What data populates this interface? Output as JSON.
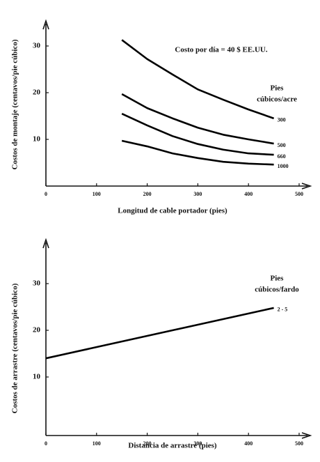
{
  "chart_data": [
    {
      "type": "line",
      "annotation": "Costo por día = 40 $ EE.UU.",
      "legend_title": [
        "Pies",
        "cúbicos/acre"
      ],
      "xlabel": "Longitud de cable portador (pies)",
      "ylabel": "Costos de montaje (centavos/pie cúbico)",
      "x": [
        150,
        200,
        250,
        300,
        350,
        400,
        450
      ],
      "series": [
        {
          "name": "300",
          "color": "#000000",
          "values": [
            31.3,
            27.2,
            23.9,
            20.7,
            18.5,
            16.4,
            14.5
          ]
        },
        {
          "name": "500",
          "color": "#000000",
          "values": [
            19.7,
            16.7,
            14.5,
            12.5,
            11.0,
            10.0,
            9.1
          ]
        },
        {
          "name": "660",
          "color": "#000000",
          "values": [
            15.5,
            13.0,
            10.7,
            9.0,
            7.8,
            7.0,
            6.7
          ]
        },
        {
          "name": "1000",
          "color": "#000000",
          "values": [
            9.7,
            8.5,
            7.0,
            6.0,
            5.2,
            4.8,
            4.6
          ]
        }
      ],
      "xlim": [
        0,
        500
      ],
      "xticks": [
        0,
        100,
        200,
        300,
        400,
        500
      ],
      "ylim": [
        0,
        35
      ],
      "yticks": [
        10,
        20,
        30
      ]
    },
    {
      "type": "line",
      "legend_title": [
        "Pies",
        "cúbicos/fardo"
      ],
      "xlabel": "Distancia de arrastre (pies)",
      "ylabel": "Costos de arrastre (centavos/pie cúbico)",
      "x": [
        0,
        450
      ],
      "series": [
        {
          "name": "2 - 5",
          "color": "#000000",
          "values": [
            14.0,
            24.8
          ]
        }
      ],
      "xlim": [
        0,
        500
      ],
      "xticks": [
        0,
        100,
        200,
        300,
        400,
        500
      ],
      "ylim": [
        0,
        35
      ],
      "yticks": [
        10,
        20,
        30
      ]
    }
  ]
}
